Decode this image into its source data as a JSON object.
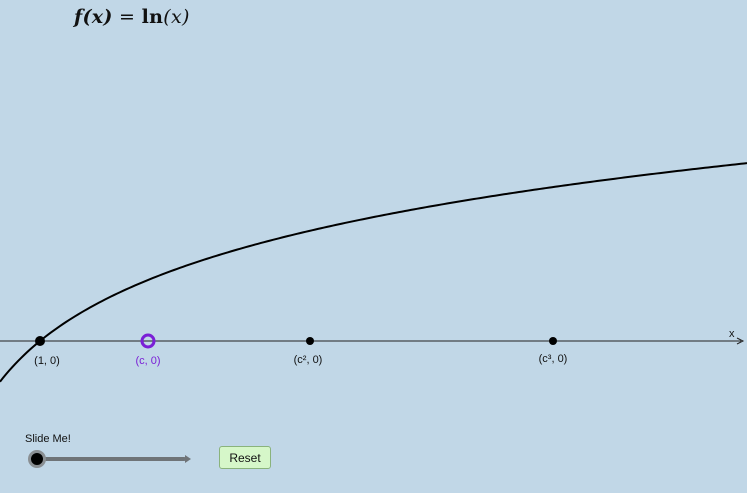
{
  "formula": {
    "lhs": "f(x)",
    "eq": " = ",
    "fn": "ln",
    "arg": "(x)"
  },
  "axis": {
    "x_label": "x"
  },
  "points": [
    {
      "label": "(1, 0)",
      "color": "#000000",
      "style": "filled-large"
    },
    {
      "label": "(c, 0)",
      "color": "#7a1fd6",
      "style": "open-ring"
    },
    {
      "label": "(c², 0)",
      "color": "#000000",
      "style": "filled-small"
    },
    {
      "label": "(c³, 0)",
      "color": "#000000",
      "style": "filled-small"
    }
  ],
  "slider": {
    "label": "Slide Me!",
    "value_fraction": 0.0
  },
  "reset_button": {
    "label": "Reset"
  },
  "colors": {
    "background": "#c1d7e7",
    "curve": "#000000",
    "highlight": "#7a1fd6"
  }
}
